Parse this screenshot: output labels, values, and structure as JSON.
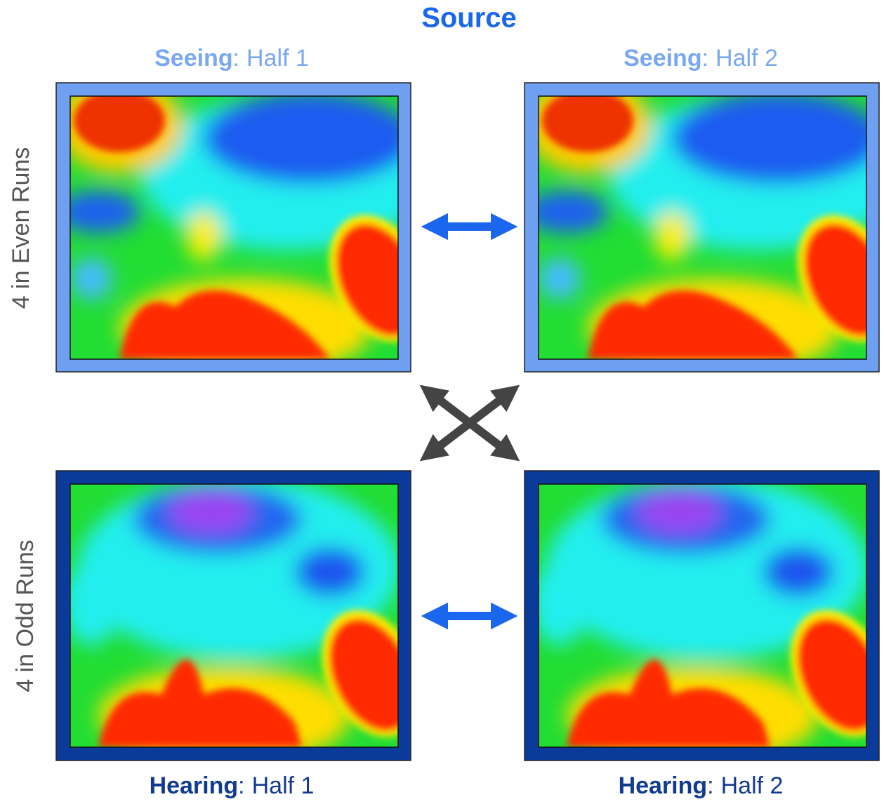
{
  "title": "Source",
  "rows": [
    "4 in Even Runs",
    "4 in Odd Runs"
  ],
  "panels": [
    {
      "name": "Seeing",
      "half": "Half 1"
    },
    {
      "name": "Seeing",
      "half": "Half 2"
    },
    {
      "name": "Hearing",
      "half": "Half 1"
    },
    {
      "name": "Hearing",
      "half": "Half 2"
    }
  ],
  "colon": ":"
}
